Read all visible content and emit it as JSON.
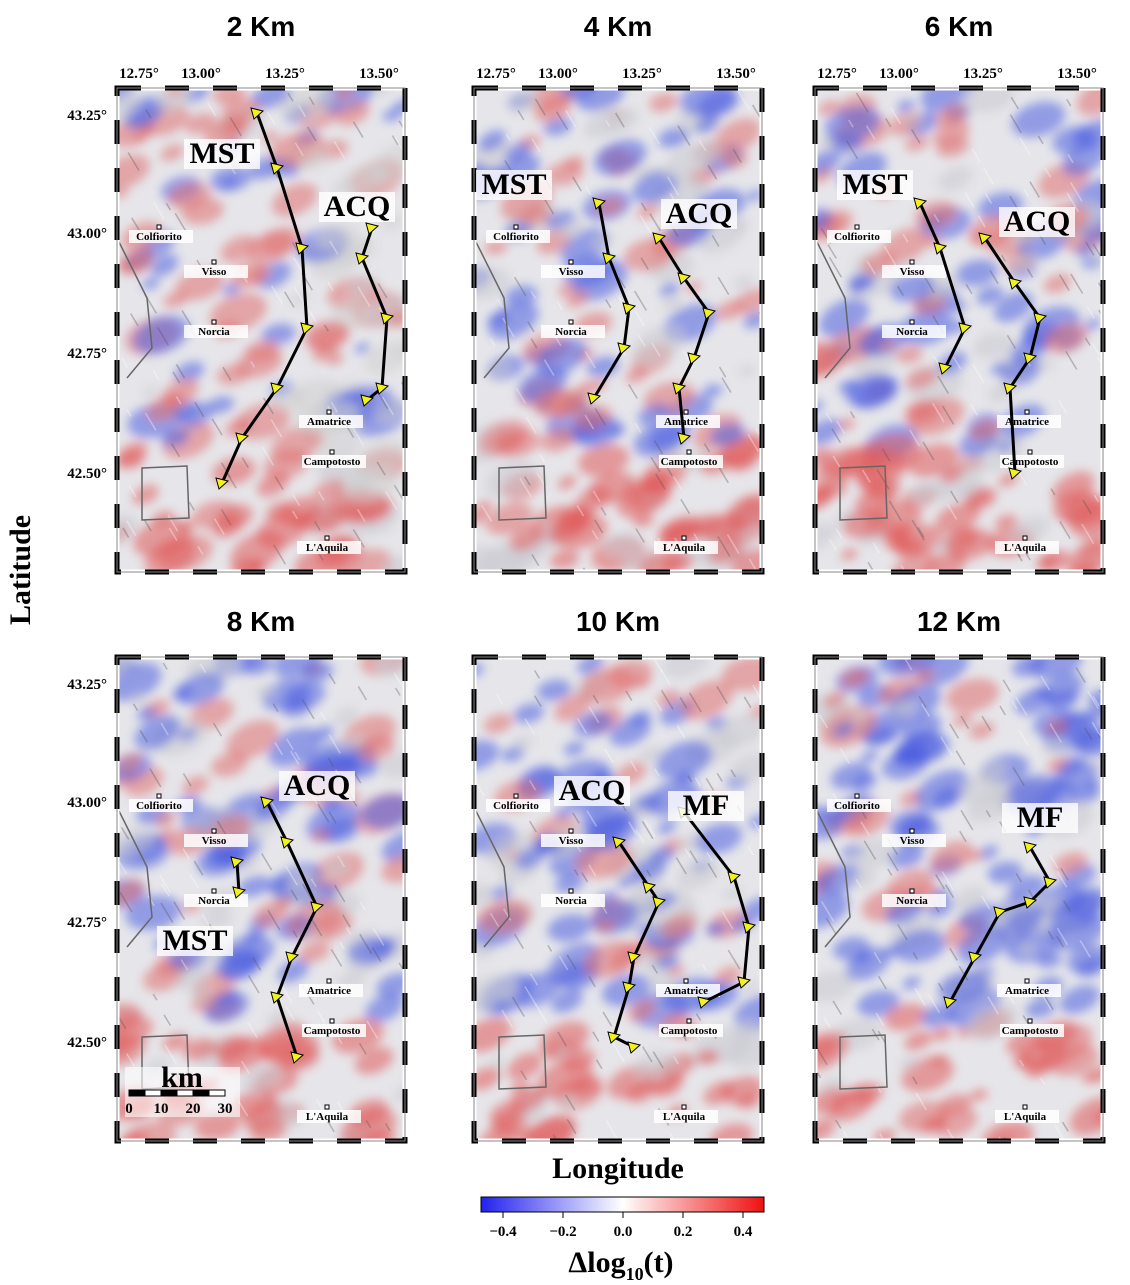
{
  "panels": [
    {
      "title": "2 Km",
      "faults": [
        "MST",
        "ACQ"
      ]
    },
    {
      "title": "4 Km",
      "faults": [
        "MST",
        "ACQ"
      ]
    },
    {
      "title": "6 Km",
      "faults": [
        "MST",
        "ACQ"
      ]
    },
    {
      "title": "8 Km",
      "faults": [
        "ACQ",
        "MST"
      ]
    },
    {
      "title": "10 Km",
      "faults": [
        "ACQ",
        "MF"
      ]
    },
    {
      "title": "12 Km",
      "faults": [
        "MF"
      ]
    }
  ],
  "towns": [
    "Colfiorito",
    "Visso",
    "Norcia",
    "Amatrice",
    "Campotosto",
    "L'Aquila"
  ],
  "longitude_ticks": [
    "12.75°",
    "13.00°",
    "13.25°",
    "13.50°"
  ],
  "latitude_ticks": [
    "43.25°",
    "43.00°",
    "42.75°",
    "42.50°"
  ],
  "x_label": "Longitude",
  "y_label": "Latitude",
  "scale_bar": {
    "unit": "km",
    "ticks": [
      "0",
      "10",
      "20",
      "30"
    ]
  },
  "colorbar": {
    "ticks": [
      "−0.4",
      "−0.2",
      "0.0",
      "0.2",
      "0.4"
    ],
    "label": {
      "base": "Δlog",
      "subscript": "10",
      "suffix": "(t)"
    }
  }
}
